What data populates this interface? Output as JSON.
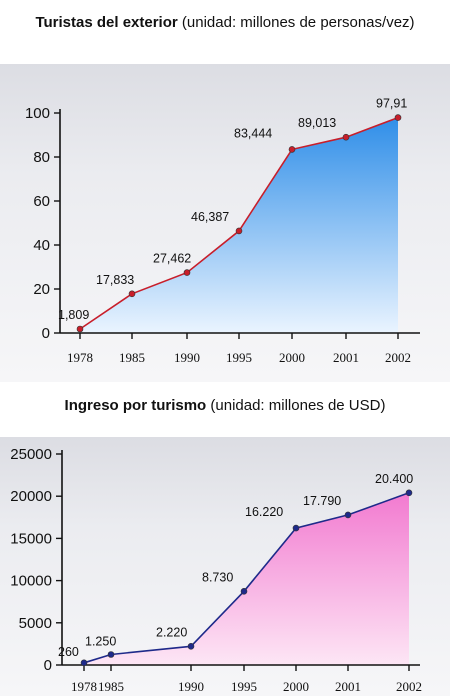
{
  "chart_data": [
    {
      "type": "area",
      "title": "Turistas del exterior",
      "subtitle": "(unidad: millones de personas/vez)",
      "categories": [
        "1978",
        "1985",
        "1990",
        "1995",
        "2000",
        "2001",
        "2002"
      ],
      "values": [
        1.809,
        17.833,
        27.462,
        46.387,
        83.444,
        89.013,
        97.91
      ],
      "data_labels": [
        "1,809",
        "17,833",
        "27,462",
        "46,387",
        "83,444",
        "89,013",
        "97,91"
      ],
      "yticks": [
        "0",
        "20",
        "40",
        "60",
        "80",
        "100"
      ],
      "ylim": [
        0,
        100
      ],
      "line_color": "#c81e2a",
      "marker_color": "#c81e2a",
      "fill_top": "#2f8ee8",
      "fill_bottom": "#eaf4ff",
      "grid": false,
      "legend": "none"
    },
    {
      "type": "area",
      "title": "Ingreso por turismo",
      "subtitle": "(unidad: millones de USD)",
      "categories": [
        "1978",
        "1985",
        "1990",
        "1995",
        "2000",
        "2001",
        "2002"
      ],
      "values": [
        260,
        1250,
        2220,
        8730,
        16220,
        17790,
        20400
      ],
      "data_labels": [
        "260",
        "1.250",
        "2.220",
        "8.730",
        "16.220",
        "17.790",
        "20.400"
      ],
      "yticks": [
        "0",
        "5000",
        "10000",
        "15000",
        "20000",
        "25000"
      ],
      "ylim": [
        0,
        25000
      ],
      "line_color": "#1e2a8a",
      "marker_color": "#1e2a8a",
      "fill_top": "#f27ad0",
      "fill_bottom": "#fde6f5",
      "grid": false,
      "legend": "none"
    }
  ]
}
